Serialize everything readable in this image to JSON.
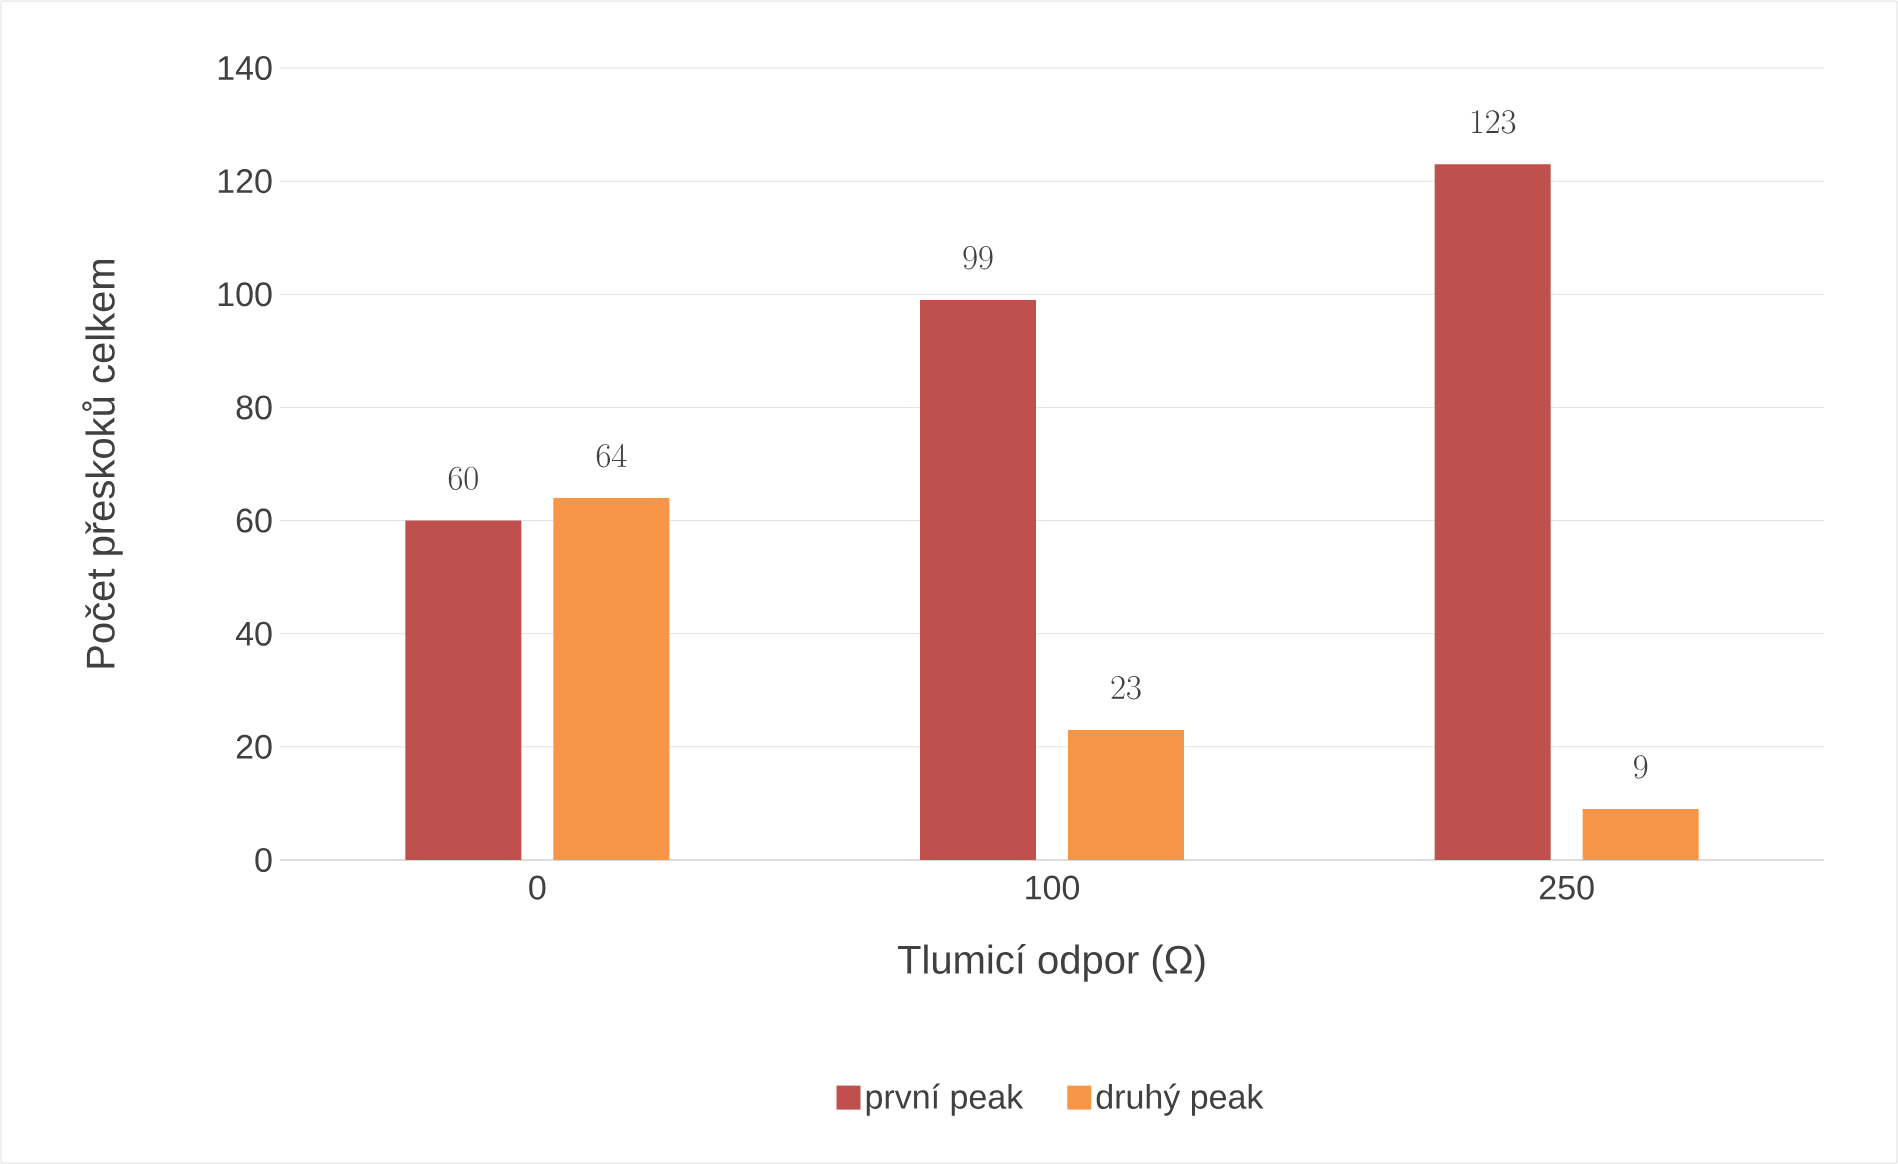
{
  "chart_data": {
    "type": "bar",
    "xlabel": "Tlumicí odpor  (Ω)",
    "ylabel": "Počet přeskoků celkem",
    "categories": [
      "0",
      "100",
      "250"
    ],
    "series": [
      {
        "name": "první peak",
        "color": "#c0504d",
        "values": [
          60,
          99,
          123
        ]
      },
      {
        "name": "druhý peak",
        "color": "#f79646",
        "values": [
          64,
          23,
          9
        ]
      }
    ],
    "ylim": [
      0,
      140
    ],
    "yticks": [
      0,
      20,
      40,
      60,
      80,
      100,
      120,
      140
    ],
    "grid": "y",
    "legend": "bottom",
    "data_labels": true
  }
}
